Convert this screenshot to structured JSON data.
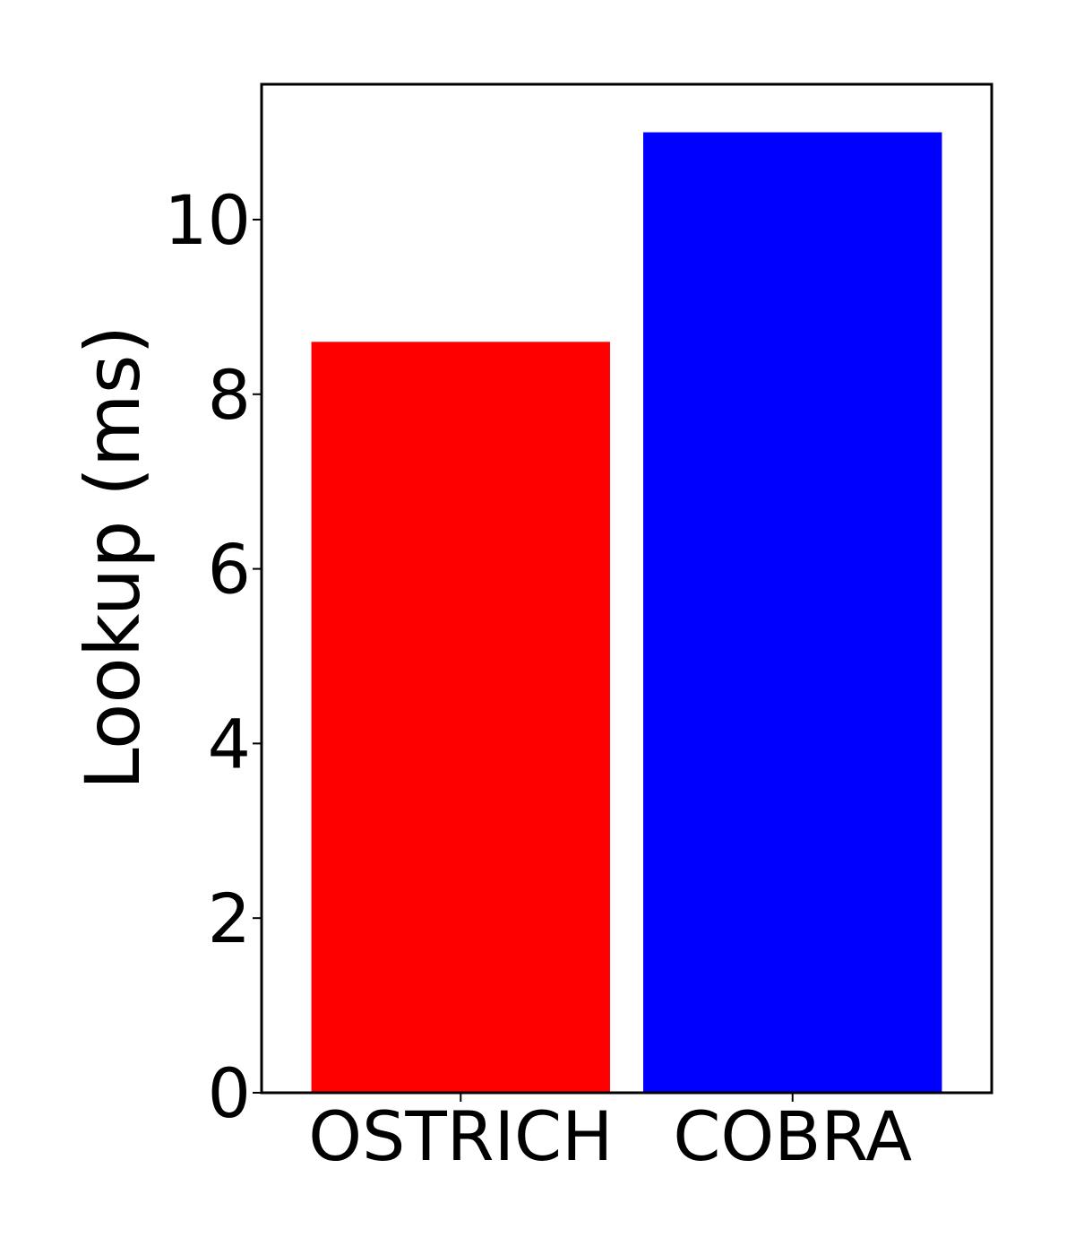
{
  "chart_data": {
    "type": "bar",
    "title": "",
    "xlabel": "",
    "ylabel": "Lookup (ms)",
    "categories": [
      "OSTRICH",
      "COBRA"
    ],
    "values": [
      8.6,
      11.0
    ],
    "colors": [
      "#ff0000",
      "#0000ff"
    ],
    "ylim": [
      0,
      11.55
    ],
    "yticks": [
      0,
      2,
      4,
      6,
      8,
      10
    ],
    "ytick_labels": [
      "0",
      "2",
      "4",
      "6",
      "8",
      "10"
    ],
    "grid": false,
    "legend": "none"
  }
}
